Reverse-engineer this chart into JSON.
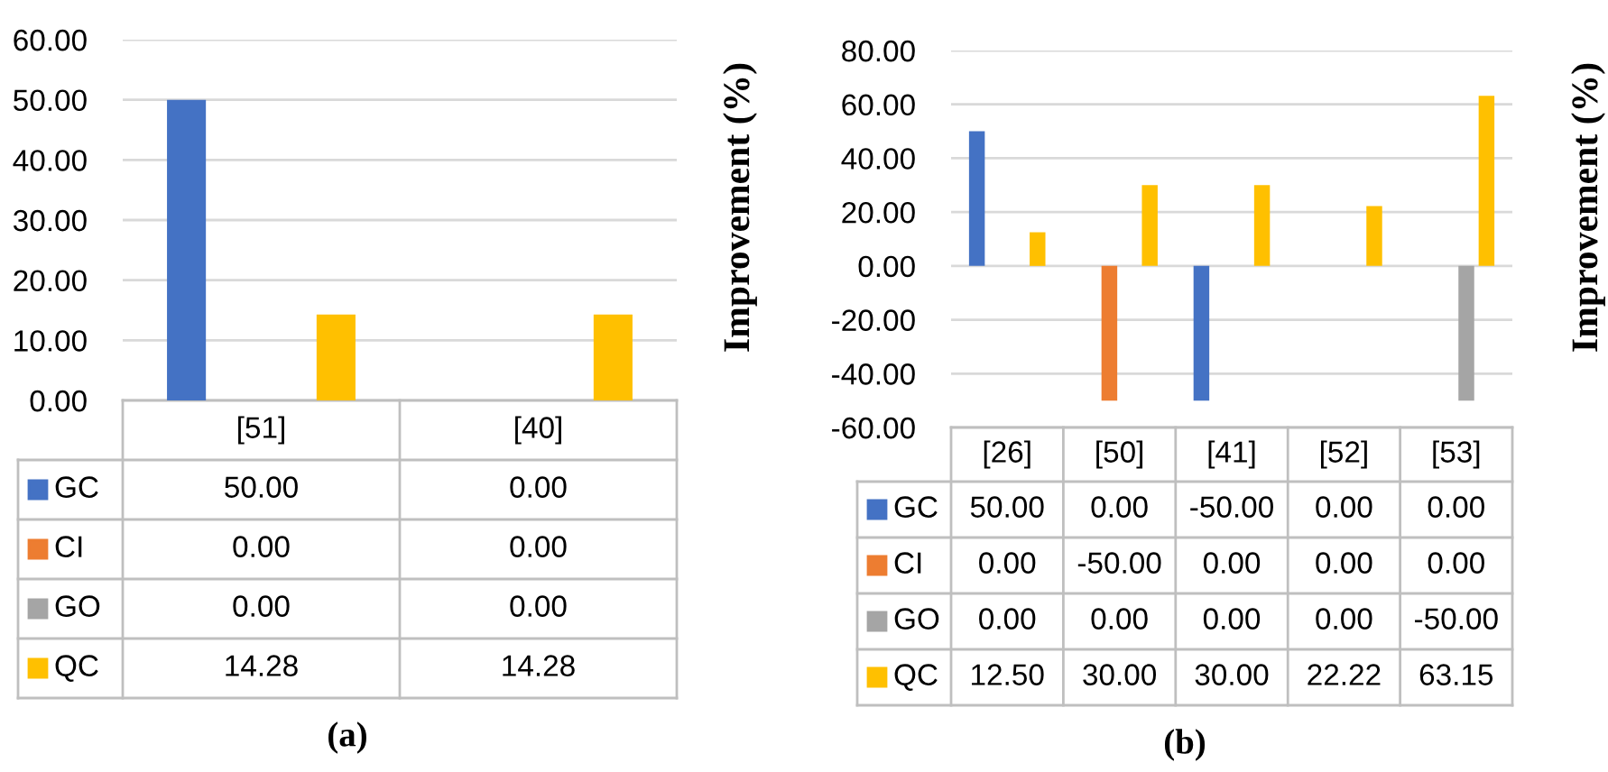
{
  "chart_data": [
    {
      "type": "bar",
      "title": "(a)",
      "ylabel": "Improvement (%)",
      "categories": [
        "[51]",
        "[40]"
      ],
      "grid": "y",
      "legend": "bottom",
      "ylim": [
        0,
        60
      ],
      "yticks": [
        {
          "value": 0,
          "label": "0.00"
        },
        {
          "value": 10,
          "label": "10.00"
        },
        {
          "value": 20,
          "label": "20.00"
        },
        {
          "value": 30,
          "label": "30.00"
        },
        {
          "value": 40,
          "label": "40.00"
        },
        {
          "value": 50,
          "label": "50.00"
        },
        {
          "value": 60,
          "label": "60.00"
        }
      ],
      "series": [
        {
          "name": "GC",
          "color": "#4472c4",
          "values": [
            50.0,
            0.0
          ],
          "value_labels": [
            "50.00",
            "0.00"
          ]
        },
        {
          "name": "CI",
          "color": "#ed7d31",
          "values": [
            0.0,
            0.0
          ],
          "value_labels": [
            "0.00",
            "0.00"
          ]
        },
        {
          "name": "GO",
          "color": "#a5a5a5",
          "values": [
            0.0,
            0.0
          ],
          "value_labels": [
            "0.00",
            "0.00"
          ]
        },
        {
          "name": "QC",
          "color": "#ffc000",
          "values": [
            14.28,
            14.28
          ],
          "value_labels": [
            "14.28",
            "14.28"
          ]
        }
      ]
    },
    {
      "type": "bar",
      "title": "(b)",
      "ylabel": "Improvement (%)",
      "categories": [
        "[26]",
        "[50]",
        "[41]",
        "[52]",
        "[53]"
      ],
      "grid": "y",
      "legend": "bottom",
      "ylim": [
        -60,
        80
      ],
      "yticks": [
        {
          "value": -60,
          "label": "-60.00"
        },
        {
          "value": -40,
          "label": "-40.00"
        },
        {
          "value": -20,
          "label": "-20.00"
        },
        {
          "value": 0,
          "label": "0.00"
        },
        {
          "value": 20,
          "label": "20.00"
        },
        {
          "value": 40,
          "label": "40.00"
        },
        {
          "value": 60,
          "label": "60.00"
        },
        {
          "value": 80,
          "label": "80.00"
        }
      ],
      "series": [
        {
          "name": "GC",
          "color": "#4472c4",
          "values": [
            50.0,
            0.0,
            -50.0,
            0.0,
            0.0
          ],
          "value_labels": [
            "50.00",
            "0.00",
            "-50.00",
            "0.00",
            "0.00"
          ]
        },
        {
          "name": "CI",
          "color": "#ed7d31",
          "values": [
            0.0,
            -50.0,
            0.0,
            0.0,
            0.0
          ],
          "value_labels": [
            "0.00",
            "-50.00",
            "0.00",
            "0.00",
            "0.00"
          ]
        },
        {
          "name": "GO",
          "color": "#a5a5a5",
          "values": [
            0.0,
            0.0,
            0.0,
            0.0,
            -50.0
          ],
          "value_labels": [
            "0.00",
            "0.00",
            "0.00",
            "0.00",
            "-50.00"
          ]
        },
        {
          "name": "QC",
          "color": "#ffc000",
          "values": [
            12.5,
            30.0,
            30.0,
            22.22,
            63.15
          ],
          "value_labels": [
            "12.50",
            "30.00",
            "30.00",
            "22.22",
            "63.15"
          ]
        }
      ]
    }
  ]
}
